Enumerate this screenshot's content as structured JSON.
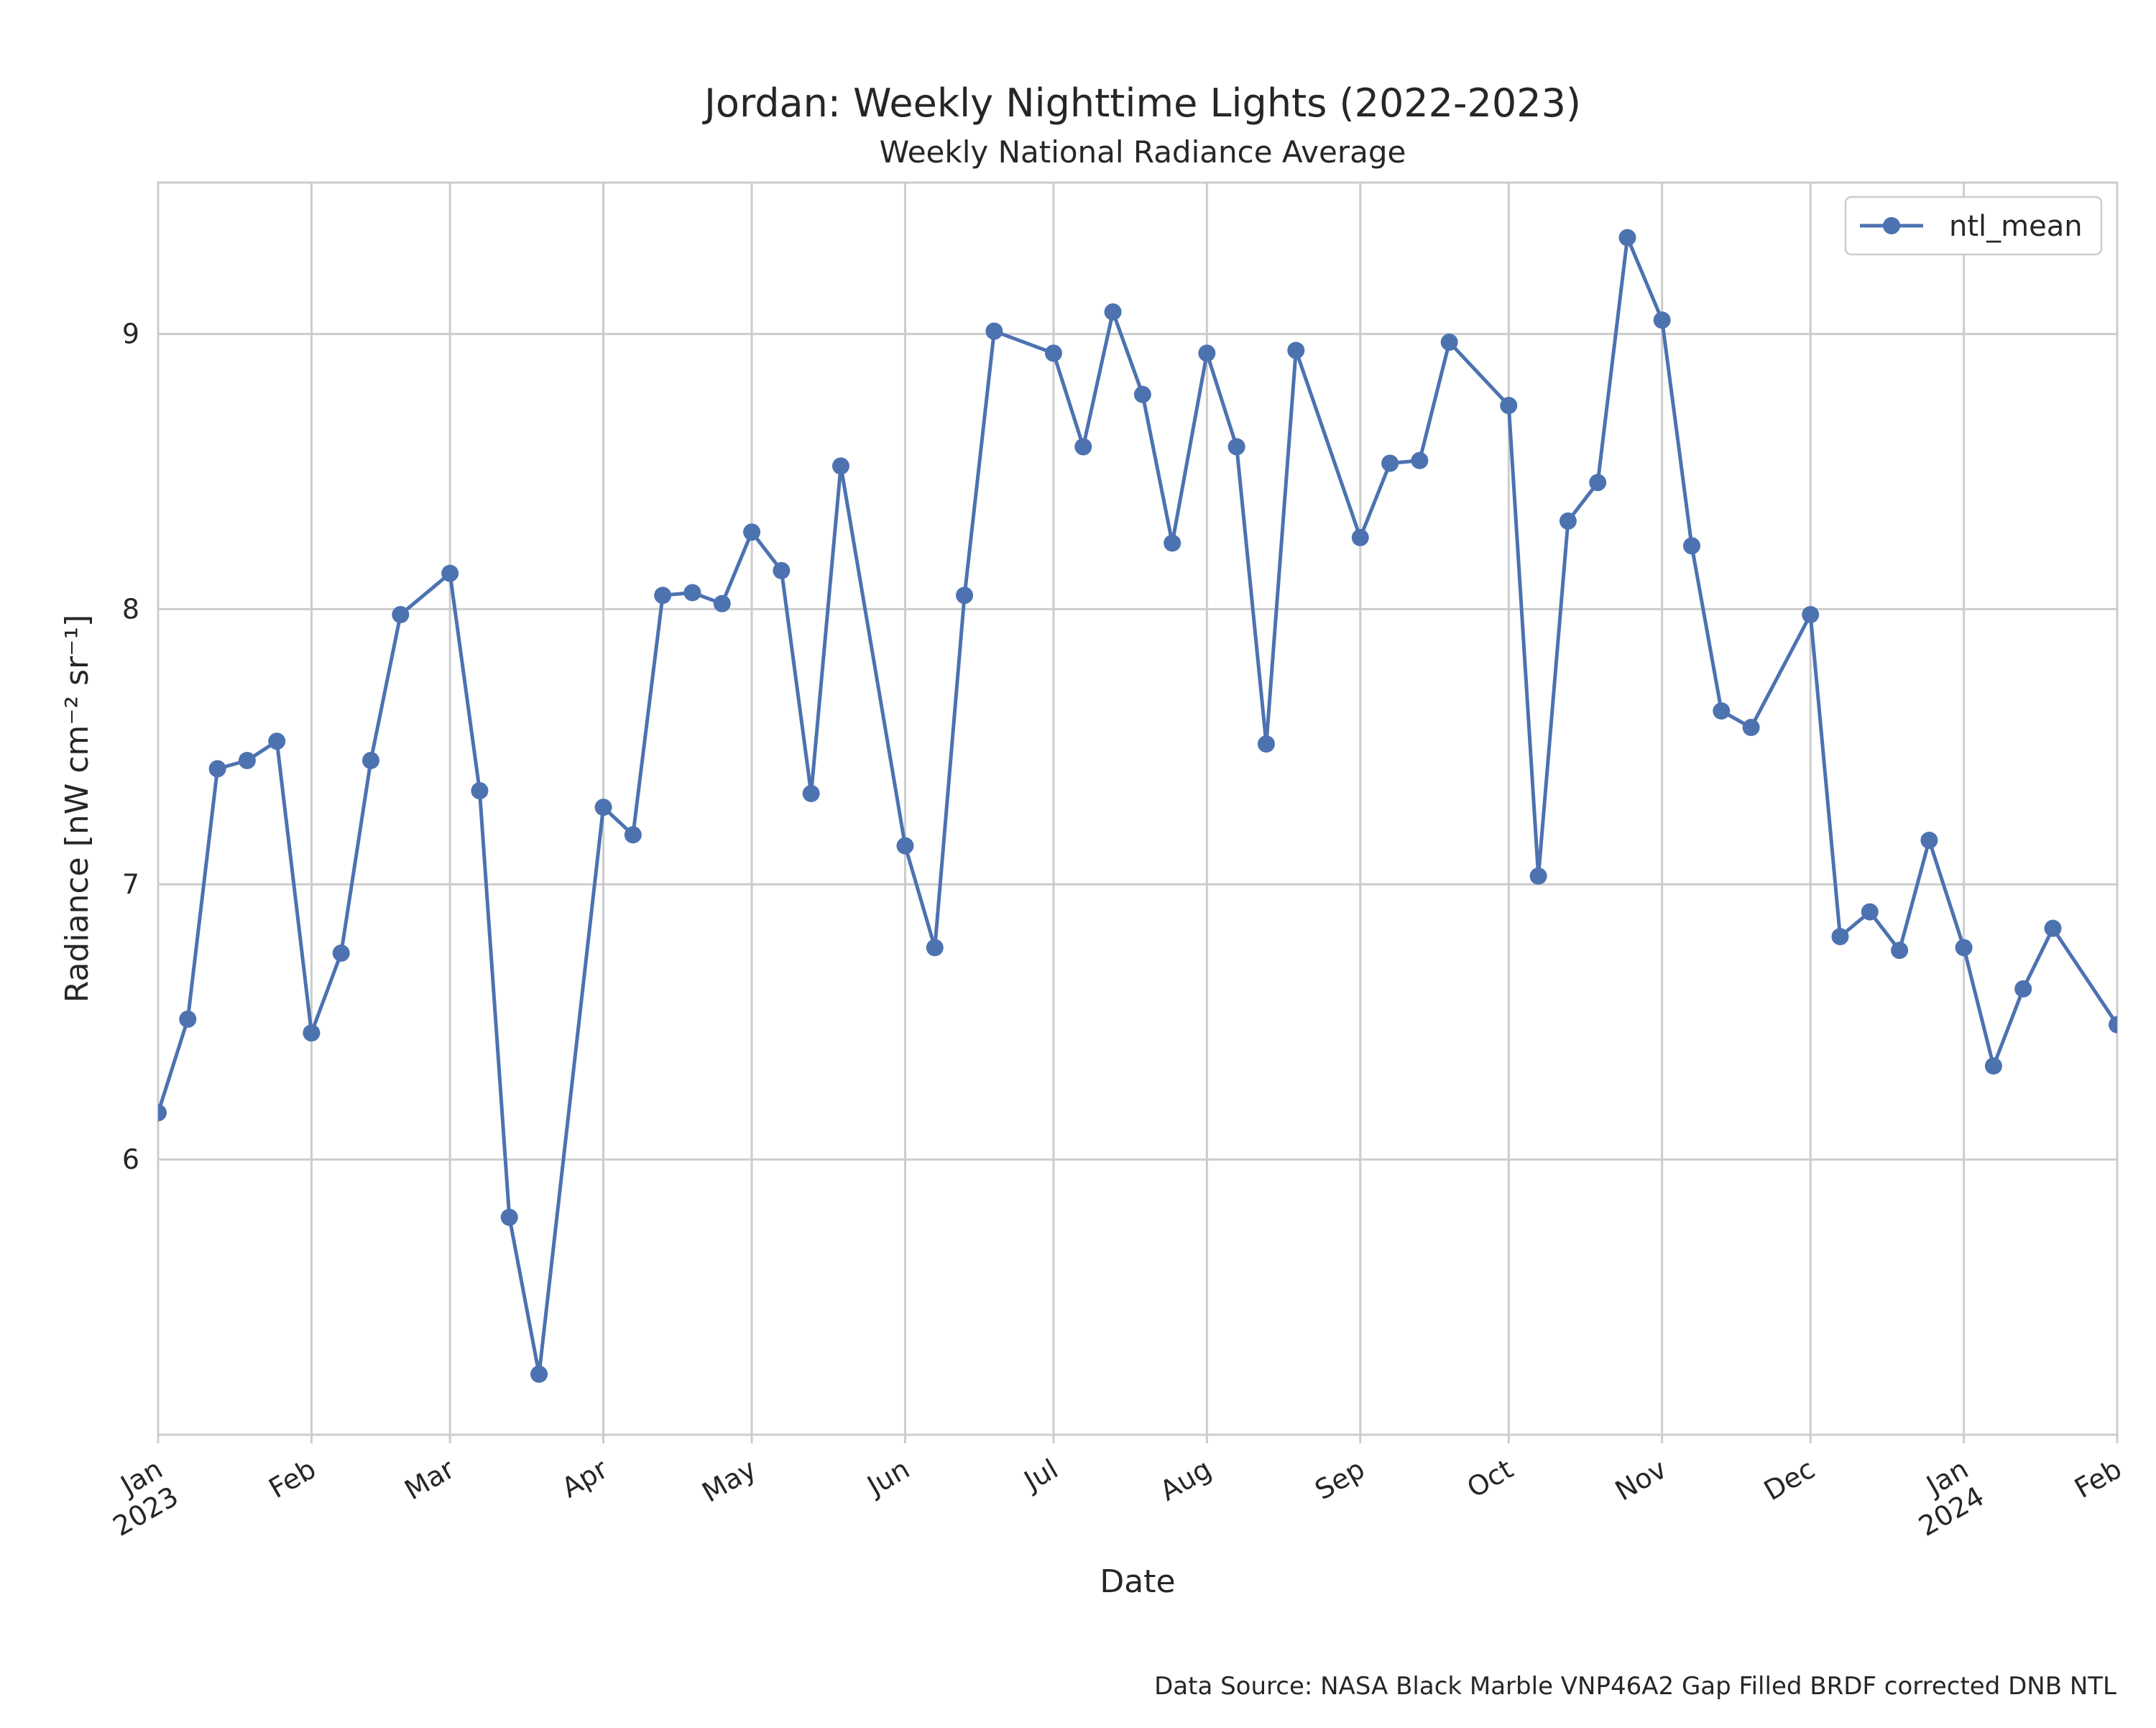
{
  "chart_data": {
    "type": "line",
    "title": "Jordan: Weekly Nighttime Lights (2022-2023)",
    "subtitle": "Weekly National Radiance Average",
    "xlabel": "Date",
    "ylabel": "Radiance [nW cm⁻² sr⁻¹]",
    "source": "Data Source: NASA Black Marble VNP46A2 Gap Filled BRDF corrected DNB NTL",
    "xlim": [
      "2023-01-01",
      "2024-02-01"
    ],
    "ylim": [
      5.0,
      9.55
    ],
    "grid": true,
    "legend_position": "top-right",
    "line_color": "#4c72b0",
    "x_ticks": [
      {
        "date": "2023-01-01",
        "label": "Jan",
        "sublabel": "2023"
      },
      {
        "date": "2023-02-01",
        "label": "Feb",
        "sublabel": ""
      },
      {
        "date": "2023-03-01",
        "label": "Mar",
        "sublabel": ""
      },
      {
        "date": "2023-04-01",
        "label": "Apr",
        "sublabel": ""
      },
      {
        "date": "2023-05-01",
        "label": "May",
        "sublabel": ""
      },
      {
        "date": "2023-06-01",
        "label": "Jun",
        "sublabel": ""
      },
      {
        "date": "2023-07-01",
        "label": "Jul",
        "sublabel": ""
      },
      {
        "date": "2023-08-01",
        "label": "Aug",
        "sublabel": ""
      },
      {
        "date": "2023-09-01",
        "label": "Sep",
        "sublabel": ""
      },
      {
        "date": "2023-10-01",
        "label": "Oct",
        "sublabel": ""
      },
      {
        "date": "2023-11-01",
        "label": "Nov",
        "sublabel": ""
      },
      {
        "date": "2023-12-01",
        "label": "Dec",
        "sublabel": ""
      },
      {
        "date": "2024-01-01",
        "label": "Jan",
        "sublabel": "2024"
      },
      {
        "date": "2024-02-01",
        "label": "Feb",
        "sublabel": ""
      }
    ],
    "y_ticks": [
      6,
      7,
      8,
      9
    ],
    "series": [
      {
        "name": "ntl_mean",
        "points": [
          [
            "2023-01-01",
            6.17
          ],
          [
            "2023-01-07",
            6.51
          ],
          [
            "2023-01-13",
            7.42
          ],
          [
            "2023-01-19",
            7.45
          ],
          [
            "2023-01-25",
            7.52
          ],
          [
            "2023-02-01",
            6.46
          ],
          [
            "2023-02-07",
            6.75
          ],
          [
            "2023-02-13",
            7.45
          ],
          [
            "2023-02-19",
            7.98
          ],
          [
            "2023-03-01",
            8.13
          ],
          [
            "2023-03-07",
            7.34
          ],
          [
            "2023-03-13",
            5.79
          ],
          [
            "2023-03-19",
            5.22
          ],
          [
            "2023-04-01",
            7.28
          ],
          [
            "2023-04-07",
            7.18
          ],
          [
            "2023-04-13",
            8.05
          ],
          [
            "2023-04-19",
            8.06
          ],
          [
            "2023-04-25",
            8.02
          ],
          [
            "2023-05-01",
            8.28
          ],
          [
            "2023-05-07",
            8.14
          ],
          [
            "2023-05-13",
            7.33
          ],
          [
            "2023-05-19",
            8.52
          ],
          [
            "2023-06-01",
            7.14
          ],
          [
            "2023-06-07",
            6.77
          ],
          [
            "2023-06-13",
            8.05
          ],
          [
            "2023-06-19",
            9.01
          ],
          [
            "2023-07-01",
            8.93
          ],
          [
            "2023-07-07",
            8.59
          ],
          [
            "2023-07-13",
            9.08
          ],
          [
            "2023-07-19",
            8.78
          ],
          [
            "2023-07-25",
            8.24
          ],
          [
            "2023-08-01",
            8.93
          ],
          [
            "2023-08-07",
            8.59
          ],
          [
            "2023-08-13",
            7.51
          ],
          [
            "2023-08-19",
            8.94
          ],
          [
            "2023-09-01",
            8.26
          ],
          [
            "2023-09-07",
            8.53
          ],
          [
            "2023-09-13",
            8.54
          ],
          [
            "2023-09-19",
            8.97
          ],
          [
            "2023-10-01",
            8.74
          ],
          [
            "2023-10-07",
            7.03
          ],
          [
            "2023-10-13",
            8.32
          ],
          [
            "2023-10-19",
            8.46
          ],
          [
            "2023-10-25",
            9.35
          ],
          [
            "2023-11-01",
            9.05
          ],
          [
            "2023-11-07",
            8.23
          ],
          [
            "2023-11-13",
            7.63
          ],
          [
            "2023-11-19",
            7.57
          ],
          [
            "2023-12-01",
            7.98
          ],
          [
            "2023-12-07",
            6.81
          ],
          [
            "2023-12-13",
            6.9
          ],
          [
            "2023-12-19",
            6.76
          ],
          [
            "2023-12-25",
            7.16
          ],
          [
            "2024-01-01",
            6.77
          ],
          [
            "2024-01-07",
            6.34
          ],
          [
            "2024-01-13",
            6.62
          ],
          [
            "2024-01-19",
            6.84
          ],
          [
            "2024-02-01",
            6.49
          ]
        ]
      }
    ]
  }
}
